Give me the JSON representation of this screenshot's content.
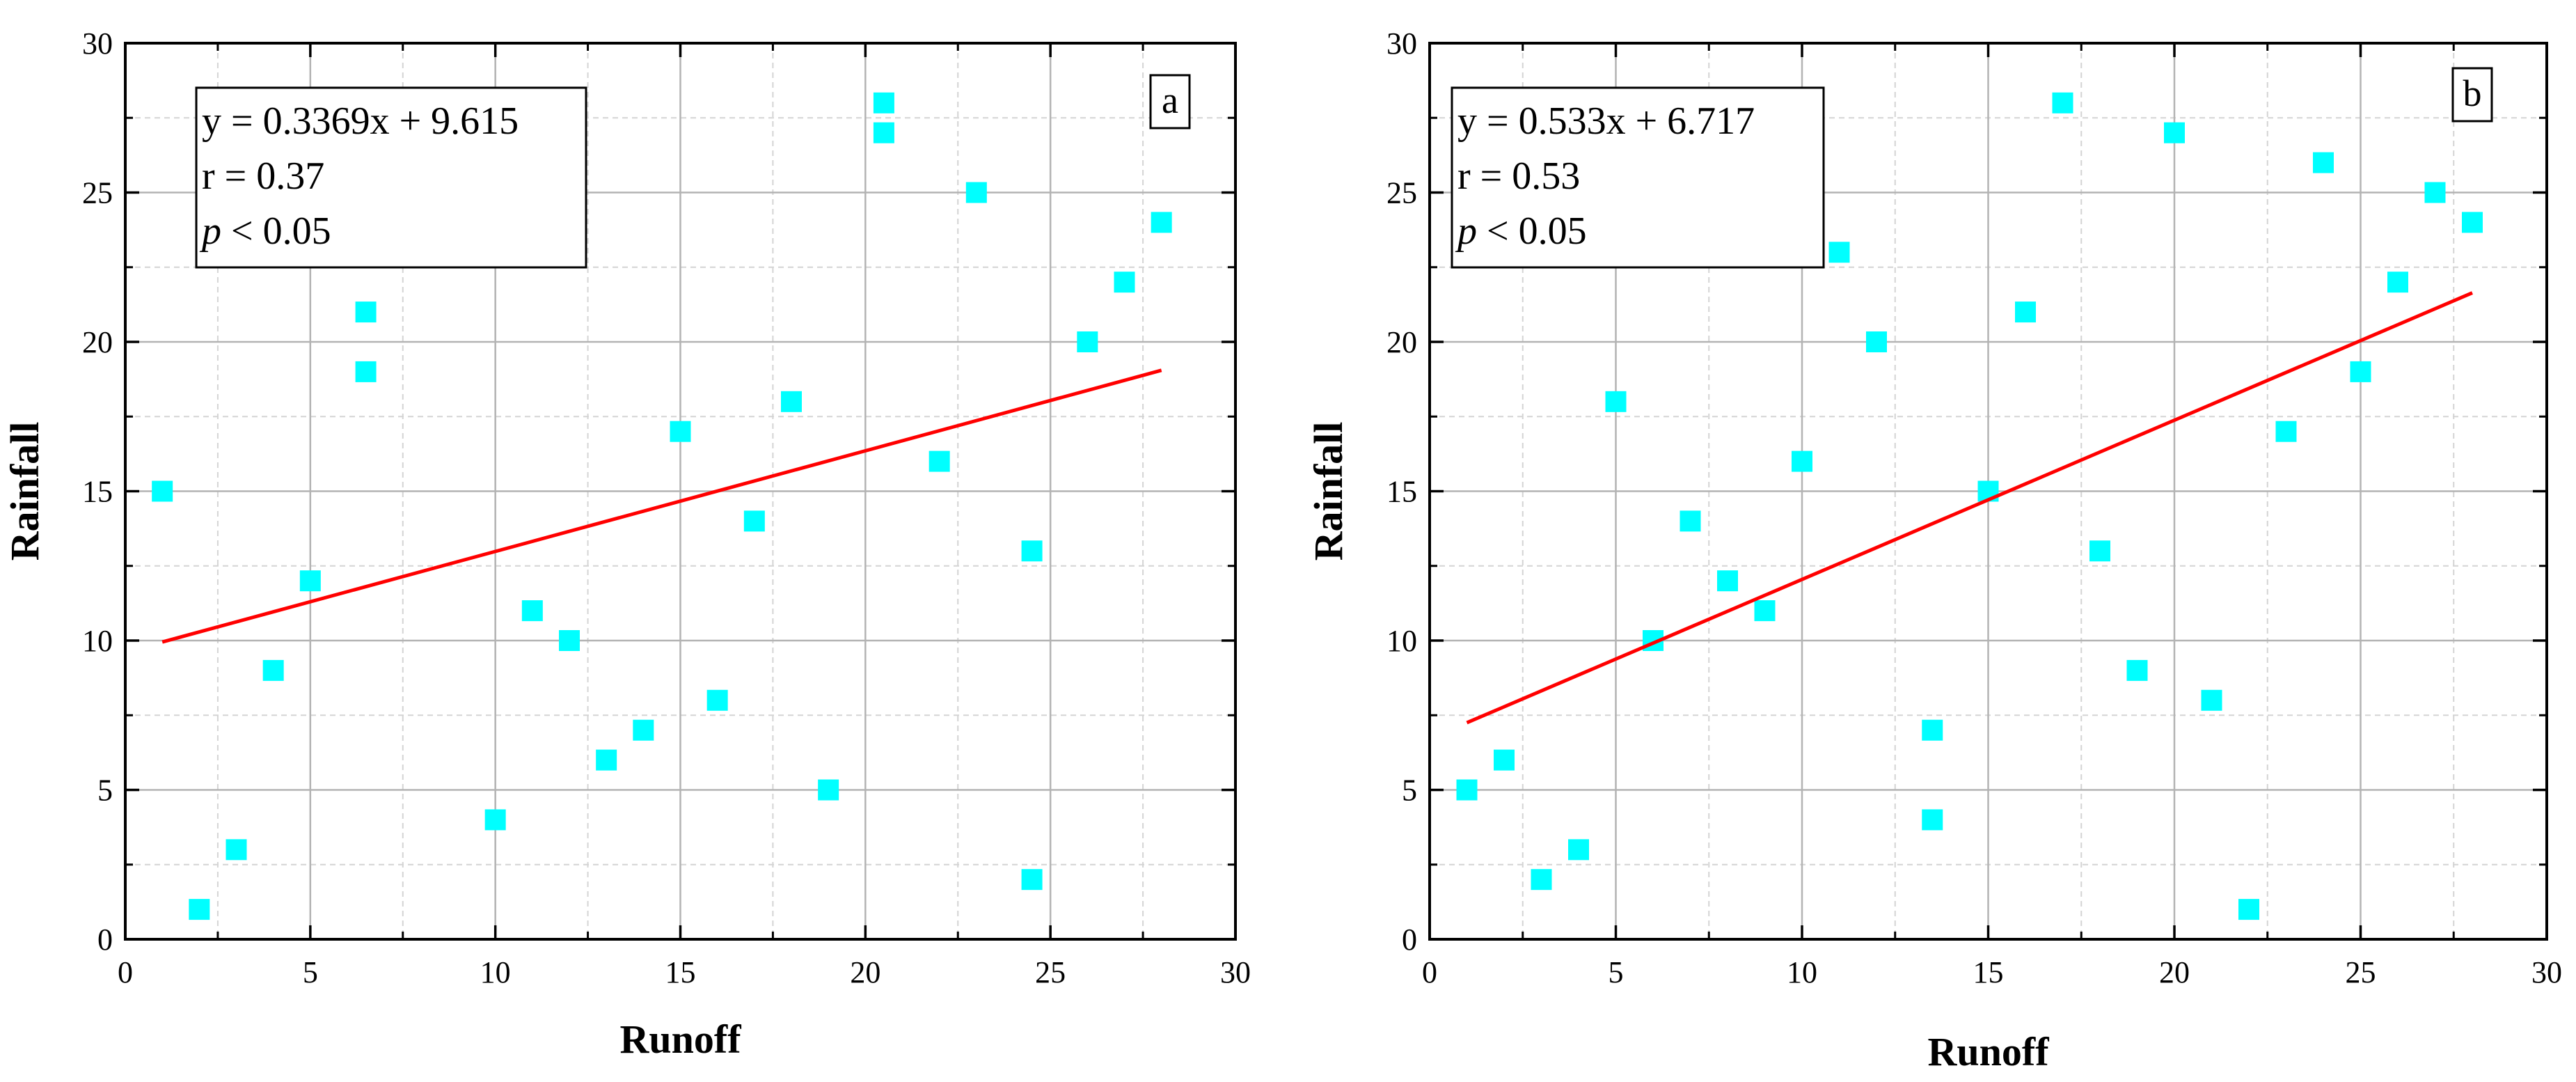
{
  "chart_data": [
    {
      "type": "scatter",
      "panel_label": "a",
      "xlabel": "Runoff",
      "ylabel": "Rainfall",
      "xlim": [
        0,
        30
      ],
      "ylim": [
        0,
        30
      ],
      "xticks": [
        0,
        5,
        10,
        15,
        20,
        25,
        30
      ],
      "yticks": [
        0,
        5,
        10,
        15,
        20,
        25,
        30
      ],
      "grid": true,
      "marker_color": "#00FFFF",
      "fit_color": "#FF0000",
      "annotation": {
        "equation": "y = 0.3369x + 9.615",
        "r": "r = 0.37",
        "p_symbol": "p",
        "p_rest": " < 0.05"
      },
      "fit": {
        "slope": 0.3369,
        "intercept": 9.615,
        "x_range": [
          1,
          28
        ]
      },
      "points": [
        [
          1,
          15
        ],
        [
          2,
          1
        ],
        [
          3,
          3
        ],
        [
          4,
          9
        ],
        [
          5,
          12
        ],
        [
          6.5,
          21
        ],
        [
          6.5,
          19
        ],
        [
          10,
          4
        ],
        [
          11,
          11
        ],
        [
          12,
          10
        ],
        [
          13,
          6
        ],
        [
          14,
          7
        ],
        [
          15,
          17
        ],
        [
          16,
          8
        ],
        [
          17,
          14
        ],
        [
          18,
          18
        ],
        [
          19,
          5
        ],
        [
          20.5,
          28
        ],
        [
          20.5,
          27
        ],
        [
          22,
          16
        ],
        [
          23,
          25
        ],
        [
          24.5,
          13
        ],
        [
          24.5,
          2
        ],
        [
          26,
          20
        ],
        [
          27,
          22
        ],
        [
          28,
          24
        ]
      ]
    },
    {
      "type": "scatter",
      "panel_label": "b",
      "xlabel": "Runoff",
      "ylabel": "Rainfall",
      "xlim": [
        0,
        30
      ],
      "ylim": [
        0,
        30
      ],
      "xticks": [
        0,
        5,
        10,
        15,
        20,
        25,
        30
      ],
      "yticks": [
        0,
        5,
        10,
        15,
        20,
        25,
        30
      ],
      "grid": true,
      "marker_color": "#00FFFF",
      "fit_color": "#FF0000",
      "annotation": {
        "equation": "y = 0.533x + 6.717",
        "r": "r = 0.53",
        "p_symbol": "p",
        "p_rest": " < 0.05"
      },
      "fit": {
        "slope": 0.533,
        "intercept": 6.717,
        "x_range": [
          1,
          28
        ]
      },
      "points": [
        [
          1,
          5
        ],
        [
          2,
          6
        ],
        [
          3,
          2
        ],
        [
          4,
          3
        ],
        [
          5,
          18
        ],
        [
          6,
          10
        ],
        [
          7,
          14
        ],
        [
          8,
          12
        ],
        [
          9,
          11
        ],
        [
          10,
          16
        ],
        [
          11,
          23
        ],
        [
          12,
          20
        ],
        [
          13.5,
          7
        ],
        [
          13.5,
          4
        ],
        [
          15,
          15
        ],
        [
          16,
          21
        ],
        [
          17,
          28
        ],
        [
          18,
          13
        ],
        [
          19,
          9
        ],
        [
          20,
          27
        ],
        [
          21,
          8
        ],
        [
          22,
          1
        ],
        [
          23,
          17
        ],
        [
          24,
          26
        ],
        [
          25,
          19
        ],
        [
          26,
          22
        ],
        [
          27,
          25
        ],
        [
          28,
          24
        ]
      ]
    }
  ]
}
